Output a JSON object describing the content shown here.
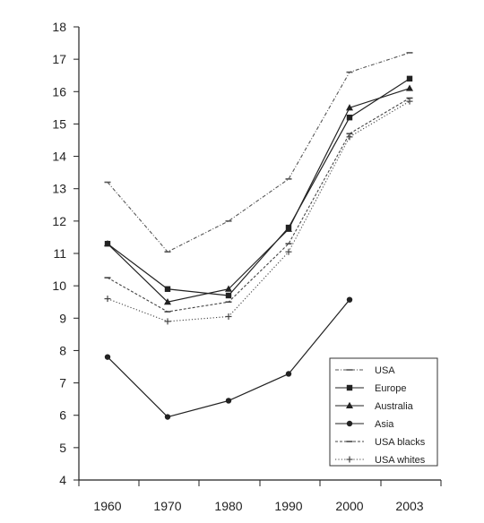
{
  "chart_data": {
    "type": "line",
    "x": [
      "1960",
      "1970",
      "1980",
      "1990",
      "2000",
      "2003"
    ],
    "ylim": [
      4,
      18
    ],
    "yticks": [
      4,
      5,
      6,
      7,
      8,
      9,
      10,
      11,
      12,
      13,
      14,
      15,
      16,
      17,
      18
    ],
    "grid": false,
    "legend_position": "bottom-right",
    "series": [
      {
        "name": "USA",
        "style": "dash-dot",
        "color": "#555555",
        "marker": "dash",
        "values": [
          13.2,
          11.05,
          12.0,
          13.3,
          16.6,
          17.2
        ]
      },
      {
        "name": "Europe",
        "style": "solid",
        "color": "#222222",
        "marker": "square",
        "values": [
          11.3,
          9.9,
          9.7,
          11.8,
          15.2,
          16.4
        ]
      },
      {
        "name": "Australia",
        "style": "solid",
        "color": "#222222",
        "marker": "triangle",
        "values": [
          11.3,
          9.5,
          9.9,
          11.75,
          15.5,
          16.1
        ]
      },
      {
        "name": "Asia",
        "style": "solid",
        "color": "#222222",
        "marker": "circle",
        "values": [
          7.8,
          5.95,
          6.45,
          7.28,
          9.57,
          null
        ]
      },
      {
        "name": "USA blacks",
        "style": "dashed",
        "color": "#444444",
        "marker": "dash",
        "values": [
          10.25,
          9.2,
          9.5,
          11.3,
          14.7,
          15.8
        ]
      },
      {
        "name": "USA whites",
        "style": "dotted",
        "color": "#444444",
        "marker": "plus",
        "values": [
          9.6,
          8.9,
          9.05,
          11.05,
          14.6,
          15.7
        ]
      }
    ]
  }
}
